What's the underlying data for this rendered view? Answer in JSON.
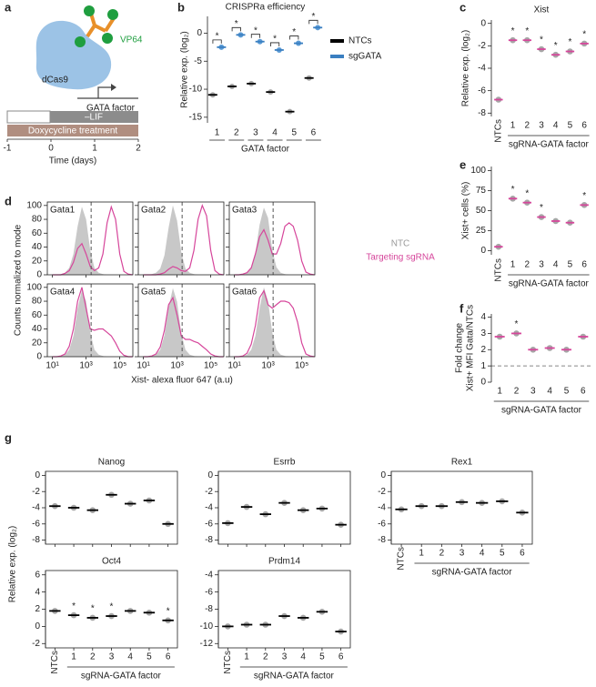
{
  "diagram": {
    "panel": "a",
    "labels": {
      "effector": "VP64",
      "protein": "dCas9",
      "gene": "GATA factor"
    },
    "timeline": {
      "condition": "–LIF",
      "treatment": "Doxycycline treatment",
      "xlabel": "Time (days)",
      "xlim": [
        -1,
        2
      ],
      "xticks": [
        -1,
        0,
        1,
        2
      ]
    }
  },
  "chart_data": [
    {
      "type": "dot-pair",
      "panel": "b",
      "title": "CRISPRa efficiency",
      "ylabel": "Relative exp. (log₂)",
      "xlabel": "GATA factor",
      "categories": [
        "1",
        "2",
        "3",
        "4",
        "5",
        "6"
      ],
      "series": [
        {
          "name": "NTCs",
          "color": "#000000",
          "point_color": "#a6a6a6",
          "values": [
            -11,
            -9.5,
            -9,
            -10.5,
            -14,
            -8
          ]
        },
        {
          "name": "sgGATA",
          "color": "#3a7fc1",
          "point_color": "#5b9bd5",
          "values": [
            -2.5,
            -0.3,
            -1.5,
            -3,
            -1.8,
            1
          ]
        }
      ],
      "annotations": [
        {
          "index": 0,
          "text": "*"
        },
        {
          "index": 1,
          "text": "*"
        },
        {
          "index": 2,
          "text": "*"
        },
        {
          "index": 3,
          "text": "*"
        },
        {
          "index": 4,
          "text": "*"
        },
        {
          "index": 5,
          "text": "*"
        }
      ],
      "ylim": [
        -16,
        3
      ],
      "yticks": [
        -15,
        -10,
        -5,
        0
      ]
    },
    {
      "type": "dot",
      "panel": "c",
      "title": "Xist",
      "ylabel": "Relative exp. (log₂)",
      "xlabel": "sgRNA-GATA factor",
      "categories": [
        "NTCs",
        "1",
        "2",
        "3",
        "4",
        "5",
        "6"
      ],
      "values": [
        -6.8,
        -1.5,
        -1.5,
        -2.3,
        -2.8,
        -2.5,
        -1.8
      ],
      "color": "#d6469b",
      "point_color": "#a6a6a6",
      "annotations": [
        {
          "index": 1,
          "text": "*"
        },
        {
          "index": 2,
          "text": "*"
        },
        {
          "index": 3,
          "text": "*"
        },
        {
          "index": 4,
          "text": "*"
        },
        {
          "index": 5,
          "text": "*"
        },
        {
          "index": 6,
          "text": "*"
        }
      ],
      "ylim": [
        -8.3,
        0.3
      ],
      "yticks": [
        -8,
        -6,
        -4,
        -2,
        0
      ]
    },
    {
      "type": "dot",
      "panel": "e",
      "ylabel": "Xist+ cells (%)",
      "xlabel": "sgRNA-GATA factor",
      "categories": [
        "NTCs",
        "1",
        "2",
        "3",
        "4",
        "5",
        "6"
      ],
      "values": [
        5,
        65,
        60,
        42,
        37,
        35,
        57
      ],
      "color": "#d6469b",
      "point_color": "#a6a6a6",
      "annotations": [
        {
          "index": 1,
          "text": "*"
        },
        {
          "index": 2,
          "text": "*"
        },
        {
          "index": 3,
          "text": "*"
        },
        {
          "index": 6,
          "text": "*"
        }
      ],
      "ylim": [
        -5,
        105
      ],
      "yticks": [
        0,
        25,
        50,
        75,
        100
      ]
    },
    {
      "type": "dot",
      "panel": "f",
      "ylabel": [
        "Fold change",
        "Xist+ MFI Gata/NTCs"
      ],
      "xlabel": "sgRNA-GATA factor",
      "categories": [
        "1",
        "2",
        "3",
        "4",
        "5",
        "6"
      ],
      "values": [
        2.8,
        3.0,
        2.0,
        2.1,
        2.0,
        2.8
      ],
      "color": "#d6469b",
      "point_color": "#a6a6a6",
      "reference_line": 1,
      "annotations": [
        {
          "index": 1,
          "text": "*"
        }
      ],
      "ylim": [
        0,
        4.2
      ],
      "yticks": [
        0,
        1,
        2,
        3,
        4
      ]
    },
    {
      "type": "histogram-grid",
      "panel": "d",
      "ylabel": "Counts normalized to mode",
      "xlabel": "Xist- alexa fluor 647 (a.u)",
      "xscale": "log",
      "xlim": [
        5,
        600000
      ],
      "xticks": [
        {
          "value": 10,
          "label": "10¹"
        },
        {
          "value": 1000,
          "label": "10³"
        },
        {
          "value": 100000,
          "label": "10⁵"
        }
      ],
      "ylim": [
        0,
        105
      ],
      "yticks": [
        0,
        20,
        40,
        60,
        80,
        100
      ],
      "threshold": 2000,
      "series": [
        {
          "name": "NTC",
          "color": "#c8c8c8",
          "label_color": "#999999"
        },
        {
          "name": "Targeting sgRNA",
          "color": "#d6469b",
          "label_color": "#d6469b"
        }
      ],
      "x": [
        10,
        18,
        32,
        56,
        100,
        178,
        316,
        562,
        1000,
        1778,
        3162,
        5623,
        10000,
        17783,
        31623,
        56234,
        100000,
        177828,
        316228,
        562341
      ],
      "panels": [
        {
          "title": "Gata1",
          "values": [
            [
              0,
              0,
              1,
              3,
              10,
              30,
              70,
              98,
              80,
              35,
              10,
              3,
              1,
              0,
              0,
              0,
              0,
              0,
              0,
              0
            ],
            [
              0,
              0,
              0,
              2,
              6,
              18,
              38,
              45,
              30,
              12,
              6,
              10,
              30,
              75,
              98,
              80,
              30,
              5,
              1,
              0
            ]
          ]
        },
        {
          "title": "Gata2",
          "values": [
            [
              0,
              0,
              1,
              3,
              9,
              28,
              68,
              100,
              78,
              33,
              9,
              3,
              1,
              0,
              0,
              0,
              0,
              0,
              0,
              0
            ],
            [
              0,
              0,
              0,
              0,
              1,
              3,
              8,
              12,
              10,
              6,
              5,
              10,
              35,
              80,
              100,
              85,
              35,
              6,
              1,
              0
            ]
          ]
        },
        {
          "title": "Gata3",
          "values": [
            [
              0,
              0,
              1,
              4,
              11,
              32,
              72,
              97,
              82,
              36,
              11,
              3,
              1,
              0,
              0,
              0,
              0,
              0,
              0,
              0
            ],
            [
              0,
              0,
              1,
              3,
              10,
              30,
              55,
              65,
              50,
              30,
              30,
              45,
              70,
              75,
              70,
              50,
              20,
              4,
              1,
              0
            ]
          ]
        },
        {
          "title": "Gata4",
          "values": [
            [
              0,
              0,
              1,
              3,
              10,
              30,
              70,
              96,
              80,
              35,
              10,
              3,
              1,
              0,
              0,
              0,
              0,
              0,
              0,
              0
            ],
            [
              0,
              0,
              1,
              4,
              15,
              40,
              80,
              100,
              70,
              40,
              38,
              40,
              40,
              35,
              30,
              20,
              8,
              2,
              0,
              0
            ]
          ]
        },
        {
          "title": "Gata5",
          "values": [
            [
              0,
              0,
              1,
              3,
              10,
              31,
              71,
              99,
              79,
              34,
              10,
              3,
              1,
              0,
              0,
              0,
              0,
              0,
              0,
              0
            ],
            [
              0,
              0,
              1,
              4,
              14,
              38,
              75,
              85,
              60,
              30,
              25,
              25,
              22,
              20,
              15,
              10,
              4,
              1,
              0,
              0
            ]
          ]
        },
        {
          "title": "Gata6",
          "values": [
            [
              0,
              0,
              1,
              3,
              10,
              30,
              70,
              100,
              80,
              35,
              10,
              3,
              1,
              0,
              0,
              0,
              0,
              0,
              0,
              0
            ],
            [
              0,
              0,
              1,
              5,
              18,
              45,
              85,
              95,
              75,
              70,
              75,
              80,
              80,
              78,
              70,
              50,
              20,
              4,
              1,
              0
            ]
          ]
        }
      ]
    },
    {
      "type": "dot-grid",
      "panel": "g",
      "ylabel": "Relative exp. (log₂)",
      "xlabel": "sgRNA-GATA factor",
      "categories": [
        "NTCs",
        "1",
        "2",
        "3",
        "4",
        "5",
        "6"
      ],
      "color": "#000000",
      "point_color": "#a6a6a6",
      "panels": [
        {
          "title": "Nanog",
          "show_xticks": false,
          "values": [
            -3.8,
            -4.0,
            -4.3,
            -2.4,
            -3.5,
            -3.1,
            -6.0
          ],
          "ylim": [
            -8.5,
            0.5
          ],
          "yticks": [
            -8,
            -6,
            -4,
            -2,
            0
          ]
        },
        {
          "title": "Esrrb",
          "show_xticks": false,
          "values": [
            -5.9,
            -3.9,
            -4.8,
            -3.4,
            -4.3,
            -4.1,
            -6.1
          ],
          "ylim": [
            -8.5,
            0.5
          ],
          "yticks": [
            -8,
            -6,
            -4,
            -2,
            0
          ]
        },
        {
          "title": "Rex1",
          "show_xticks": true,
          "values": [
            -4.2,
            -3.8,
            -3.8,
            -3.3,
            -3.4,
            -3.2,
            -4.6
          ],
          "ylim": [
            -8.5,
            0.5
          ],
          "yticks": [
            -8,
            -6,
            -4,
            -2,
            0
          ]
        },
        {
          "title": "Oct4",
          "show_xticks": true,
          "values": [
            1.8,
            1.3,
            1.0,
            1.2,
            1.8,
            1.6,
            0.7
          ],
          "ylim": [
            -2.5,
            6.5
          ],
          "yticks": [
            -2,
            0,
            2,
            4,
            6
          ],
          "annotations": [
            {
              "index": 1,
              "text": "*"
            },
            {
              "index": 2,
              "text": "*"
            },
            {
              "index": 3,
              "text": "*"
            },
            {
              "index": 6,
              "text": "*"
            }
          ]
        },
        {
          "title": "Prdm14",
          "show_xticks": true,
          "values": [
            -10.0,
            -9.8,
            -9.8,
            -8.8,
            -9.0,
            -8.3,
            -10.6
          ],
          "ylim": [
            -12.5,
            -3.5
          ],
          "yticks": [
            -12,
            -10,
            -8,
            -6,
            -4
          ]
        }
      ]
    }
  ]
}
